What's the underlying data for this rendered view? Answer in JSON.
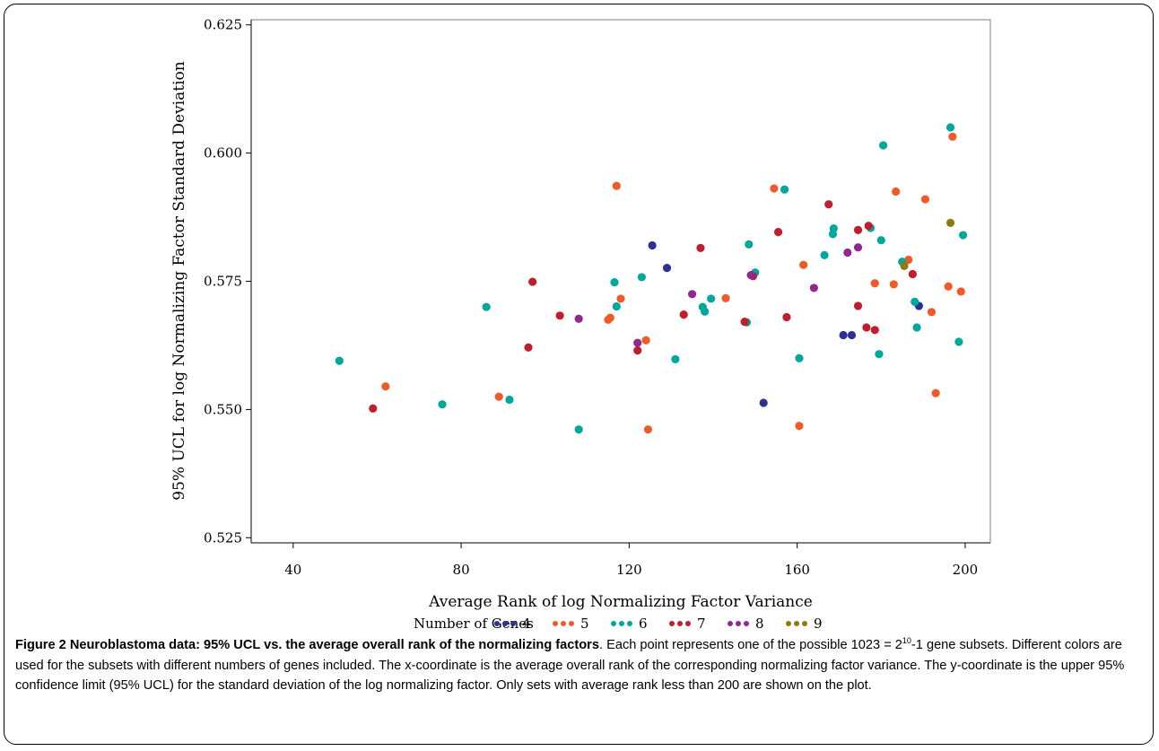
{
  "chart_data": {
    "type": "scatter",
    "xlabel": "Average Rank of log Normalizing Factor Variance",
    "ylabel": "95% UCL for log Normalizing Factor Standard Deviation",
    "xlim": [
      30,
      206
    ],
    "ylim": [
      0.524,
      0.626
    ],
    "xticks": [
      "40",
      "80",
      "120",
      "160",
      "200"
    ],
    "xtick_values": [
      40,
      80,
      120,
      160,
      200
    ],
    "yticks": [
      "0.525",
      "0.550",
      "0.575",
      "0.600",
      "0.625"
    ],
    "ytick_values": [
      0.525,
      0.55,
      0.575,
      0.6,
      0.625
    ],
    "legend_title": "Number of Genes",
    "legend_position": "bottom",
    "grid": false,
    "series": [
      {
        "name": "4",
        "color": "#2e3192",
        "points": [
          [
            125.5,
            0.582
          ],
          [
            129,
            0.5776
          ],
          [
            152,
            0.5513
          ],
          [
            171,
            0.5645
          ],
          [
            173,
            0.5645
          ],
          [
            189,
            0.5702
          ]
        ]
      },
      {
        "name": "5",
        "color": "#f05a28",
        "points": [
          [
            62,
            0.5545
          ],
          [
            89,
            0.5525
          ],
          [
            115,
            0.5675
          ],
          [
            115.5,
            0.5679
          ],
          [
            117,
            0.5936
          ],
          [
            118,
            0.5716
          ],
          [
            124,
            0.5635
          ],
          [
            124.5,
            0.5461
          ],
          [
            143,
            0.5717
          ],
          [
            154.5,
            0.5931
          ],
          [
            160.5,
            0.5468
          ],
          [
            161.5,
            0.5782
          ],
          [
            178.5,
            0.5746
          ],
          [
            183,
            0.5744
          ],
          [
            183.5,
            0.5925
          ],
          [
            186.5,
            0.5792
          ],
          [
            190.5,
            0.591
          ],
          [
            192,
            0.569
          ],
          [
            193,
            0.5532
          ],
          [
            196,
            0.574
          ],
          [
            197,
            0.6032
          ],
          [
            199,
            0.573
          ]
        ]
      },
      {
        "name": "6",
        "color": "#00a79d",
        "points": [
          [
            51,
            0.5595
          ],
          [
            75.5,
            0.551
          ],
          [
            86,
            0.57
          ],
          [
            91.5,
            0.5519
          ],
          [
            108,
            0.5461
          ],
          [
            116.5,
            0.5748
          ],
          [
            117,
            0.5701
          ],
          [
            123,
            0.5758
          ],
          [
            131,
            0.5598
          ],
          [
            137.5,
            0.57
          ],
          [
            138,
            0.5691
          ],
          [
            139.5,
            0.5716
          ],
          [
            148,
            0.567
          ],
          [
            148.5,
            0.5822
          ],
          [
            150,
            0.5767
          ],
          [
            157,
            0.5929
          ],
          [
            160.5,
            0.56
          ],
          [
            166.5,
            0.5801
          ],
          [
            168.5,
            0.5842
          ],
          [
            168.7,
            0.5853
          ],
          [
            177.5,
            0.5854
          ],
          [
            179.5,
            0.5608
          ],
          [
            180,
            0.583
          ],
          [
            180.5,
            0.6015
          ],
          [
            185,
            0.5788
          ],
          [
            188,
            0.571
          ],
          [
            188.5,
            0.566
          ],
          [
            196.5,
            0.605
          ],
          [
            198.5,
            0.5632
          ],
          [
            199.5,
            0.584
          ]
        ]
      },
      {
        "name": "7",
        "color": "#be1e2d",
        "points": [
          [
            59,
            0.5502
          ],
          [
            96,
            0.5621
          ],
          [
            97,
            0.5749
          ],
          [
            103.5,
            0.5683
          ],
          [
            122,
            0.5615
          ],
          [
            133,
            0.5685
          ],
          [
            137,
            0.5815
          ],
          [
            147.5,
            0.5671
          ],
          [
            149.5,
            0.576
          ],
          [
            155.5,
            0.5846
          ],
          [
            157.5,
            0.568
          ],
          [
            167.5,
            0.59
          ],
          [
            174.5,
            0.585
          ],
          [
            174.5,
            0.5702
          ],
          [
            176.5,
            0.566
          ],
          [
            177,
            0.5858
          ],
          [
            178.5,
            0.5655
          ],
          [
            187.5,
            0.5764
          ]
        ]
      },
      {
        "name": "8",
        "color": "#92278f",
        "points": [
          [
            108,
            0.5677
          ],
          [
            122,
            0.563
          ],
          [
            135,
            0.5725
          ],
          [
            149,
            0.5762
          ],
          [
            164,
            0.5737
          ],
          [
            172,
            0.5806
          ],
          [
            174.5,
            0.5816
          ]
        ]
      },
      {
        "name": "9",
        "color": "#8c7a15",
        "points": [
          [
            185.5,
            0.578
          ],
          [
            196.5,
            0.5864
          ]
        ]
      }
    ]
  },
  "caption": {
    "label": "Figure 2",
    "bold_title": "Neuroblastoma data: 95% UCL vs. the average overall rank of the normalizing factors",
    "text_before_sup": ". Each point represents one of the possible 1023 = 2",
    "sup": "10",
    "text_after_sup": "-1 gene subsets. Different colors are used for the subsets with different numbers of genes included. The x-coordinate is the average overall rank of the corresponding normalizing factor variance. The y-coordinate is the upper 95% confidence limit (95% UCL) for the standard deviation of the log normalizing factor. Only sets with average rank less than 200 are shown on the plot."
  }
}
